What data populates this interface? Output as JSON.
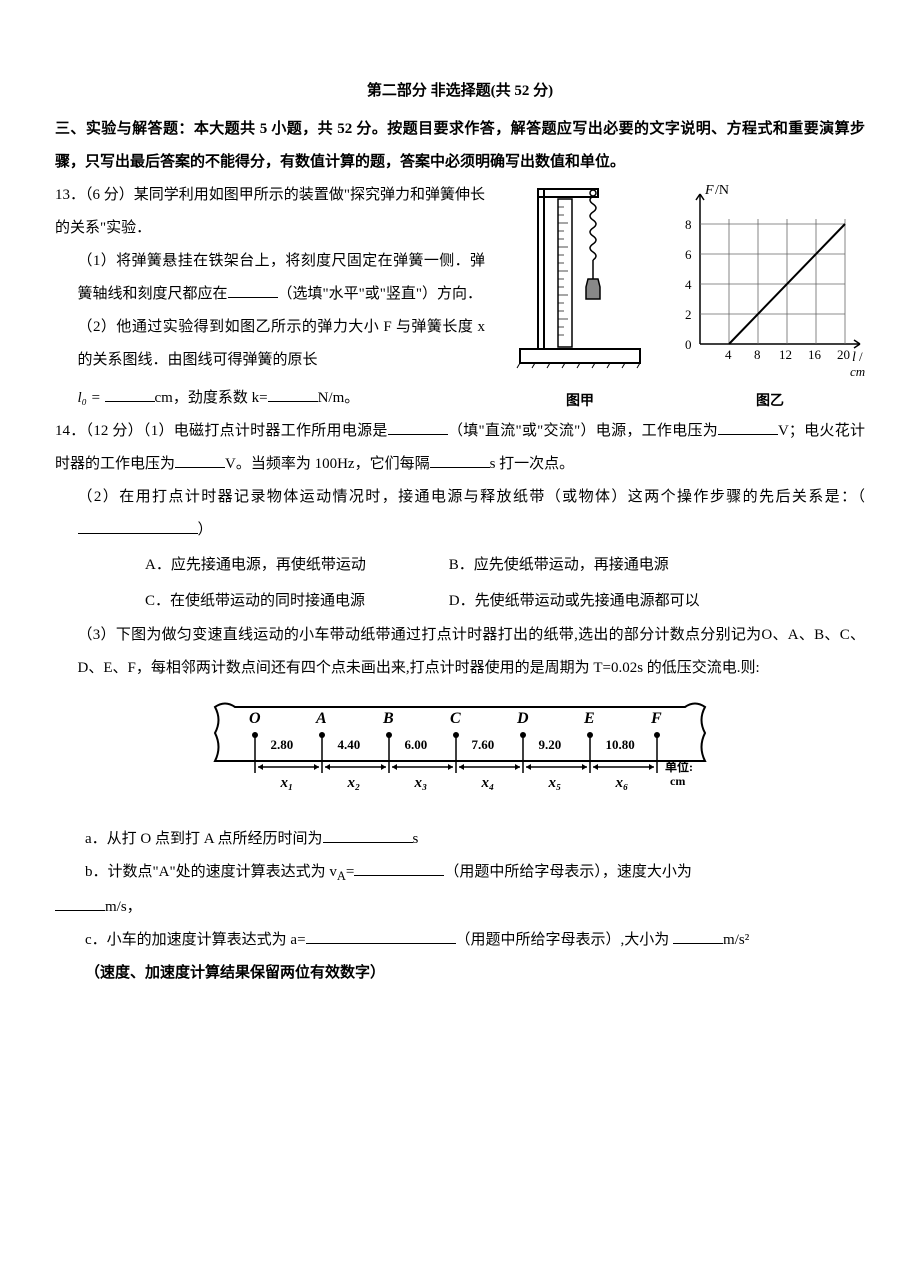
{
  "part_title": "第二部分  非选择题(共 52 分)",
  "section3_header": "三、实验与解答题：本大题共 5 小题，共 52 分。按题目要求作答，解答题应写出必要的文字说明、方程式和重要演算步骤，只写出最后答案的不能得分，有数值计算的题，答案中必须明确写出数值和单位。",
  "q13": {
    "prefix": "13．（6 分）某同学利用如图甲所示的装置做\"探究弹力和弹簧伸长的关系\"实验．",
    "p1_a": "（1）将弹簧悬挂在铁架台上，将刻度尺固定在弹簧一侧．弹簧轴线和刻度尺都应在",
    "p1_b": "（选填\"水平\"或\"竖直\"）方向．",
    "p2_a": "（2）他通过实验得到如图乙所示的弹力大小 F 与弹簧长度 x 的关系图线．由图线可得弹簧的原长",
    "p2_l0": "l₀ = ",
    "p2_cm": "cm，劲度系数 k=",
    "p2_nm": "N/m。",
    "fig1_label": "图甲",
    "fig2_label": "图乙",
    "graph": {
      "ylabel": "F/N",
      "xlabel": "l / cm",
      "yticks": [
        0,
        2,
        4,
        6,
        8
      ],
      "xticks": [
        4,
        8,
        12,
        16,
        20
      ],
      "line_start": [
        4,
        0
      ],
      "line_end": [
        20,
        8
      ],
      "axis_color": "#000000",
      "grid_color": "#666666"
    }
  },
  "q14": {
    "prefix": "14．（12 分）（1）电磁打点计时器工作所用电源是",
    "p1_b": "（填\"直流\"或\"交流\"）电源，工作电压为",
    "p1_c": "V；电火花计时器的工作电压为",
    "p1_d": "V。当频率为 100Hz，它们每隔",
    "p1_e": "s 打一次点。",
    "p2": "（2）在用打点计时器记录物体运动情况时，接通电源与释放纸带（或物体）这两个操作步骤的先后关系是：（",
    "p2_end": "）",
    "choiceA": "A．应先接通电源，再使纸带运动",
    "choiceB": "B．应先使纸带运动，再接通电源",
    "choiceC": "C．在使纸带运动的同时接通电源",
    "choiceD": "D．先使纸带运动或先接通电源都可以",
    "p3": "（3）下图为做匀变速直线运动的小车带动纸带通过打点计时器打出的纸带,选出的部分计数点分别记为O、A、B、C、D、E、F，每相邻两计数点间还有四个点未画出来,打点计时器使用的是周期为 T=0.02s 的低压交流电.则:",
    "tape": {
      "points": [
        "O",
        "A",
        "B",
        "C",
        "D",
        "E",
        "F"
      ],
      "values": [
        "2.80",
        "4.40",
        "6.00",
        "7.60",
        "9.20",
        "10.80"
      ],
      "xs": [
        "x₁",
        "x₂",
        "x₃",
        "x₄",
        "x₅",
        "x₆"
      ],
      "unit_label": "单位：cm"
    },
    "sub_a_1": "a．从打 O 点到打 A 点所经历时间为",
    "sub_a_2": "s",
    "sub_b_1": "b．计数点\"A\"处的速度计算表达式为 v",
    "sub_b_A": "A",
    "sub_b_2": "=",
    "sub_b_3": "（用题中所给字母表示），速度大小为",
    "sub_b_4": "m/s，",
    "sub_c_1": "c．小车的加速度计算表达式为 a=",
    "sub_c_2": "（用题中所给字母表示）,大小为 ",
    "sub_c_3": "m/s²",
    "note": "（速度、加速度计算结果保留两位有效数字）"
  }
}
